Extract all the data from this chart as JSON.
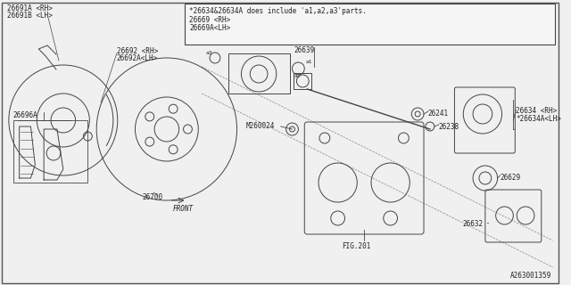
{
  "diagram_id": "A263001359",
  "background_color": "#f0f0f0",
  "line_color": "#444444",
  "border_color": "#555555",
  "text_color": "#222222",
  "note_text": "*26634&26634A does include 'a1,a2,a3'parts.",
  "figsize": [
    6.4,
    3.2
  ],
  "dpi": 100,
  "xlim": [
    0,
    640
  ],
  "ylim": [
    0,
    320
  ]
}
